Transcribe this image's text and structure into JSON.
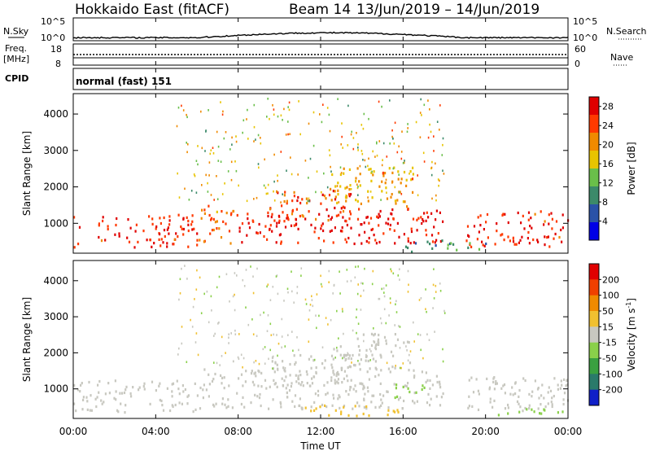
{
  "header": {
    "station": "Hokkaido East (fitACF)",
    "beam": "Beam 14",
    "date_range": "13/Jun/2019 – 14/Jun/2019"
  },
  "top_panels": {
    "nsky": {
      "label": "N.Sky",
      "left_ticks": [
        "10^5",
        "10^0"
      ],
      "right_ticks": [
        "10^5",
        "10^0"
      ],
      "right_label": "N.Search"
    },
    "freq": {
      "label_line1": "Freq.",
      "label_line2": "[MHz]",
      "left_ticks": [
        "18",
        "8"
      ],
      "right_ticks": [
        "60",
        "0"
      ],
      "right_label": "Nave"
    },
    "cpid": {
      "label": "CPID",
      "value": "normal (fast) 151"
    }
  },
  "x_axis": {
    "label": "Time UT",
    "ticks": [
      "00:00",
      "04:00",
      "08:00",
      "12:00",
      "16:00",
      "20:00",
      "00:00"
    ],
    "range_hours": [
      0,
      24
    ]
  },
  "chart_data": [
    {
      "type": "heatmap",
      "title": "",
      "xlabel": "Time UT",
      "ylabel": "Slant Range [km]",
      "xlim": [
        0,
        24
      ],
      "ylim": [
        180,
        4560
      ],
      "yticks": [
        1000,
        2000,
        3000,
        4000
      ],
      "colorbar": {
        "label": "Power [dB]",
        "ticks": [
          4,
          8,
          12,
          16,
          20,
          24,
          28
        ],
        "range": [
          0,
          30
        ],
        "colors": [
          "#0000e6",
          "#2a52a8",
          "#3c8a6a",
          "#6abf4a",
          "#e8c400",
          "#f08a00",
          "#ff3a00",
          "#e00000"
        ]
      },
      "regions": [
        {
          "t0": 0.0,
          "t1": 6.0,
          "r0": 300,
          "r1": 1200,
          "level": 26
        },
        {
          "t0": 6.0,
          "t1": 8.0,
          "r0": 400,
          "r1": 1500,
          "level": 22
        },
        {
          "t0": 8.0,
          "t1": 18.0,
          "r0": 400,
          "r1": 1400,
          "level": 27
        },
        {
          "t0": 9.5,
          "t1": 13.5,
          "r0": 1000,
          "r1": 1900,
          "level": 24
        },
        {
          "t0": 12.5,
          "t1": 16.5,
          "r0": 1400,
          "r1": 2500,
          "level": 19
        },
        {
          "t0": 19.0,
          "t1": 24.0,
          "r0": 300,
          "r1": 1300,
          "level": 26
        },
        {
          "t0": 16.0,
          "t1": 20.0,
          "r0": 180,
          "r1": 500,
          "level": 10
        }
      ]
    },
    {
      "type": "heatmap",
      "title": "",
      "xlabel": "Time UT",
      "ylabel": "Slant Range [km]",
      "xlim": [
        0,
        24
      ],
      "ylim": [
        180,
        4560
      ],
      "yticks": [
        1000,
        2000,
        3000,
        4000
      ],
      "colorbar": {
        "label": "Velocity [m s^-1]",
        "ticks": [
          200,
          100,
          50,
          15,
          -15,
          -50,
          -100,
          -200
        ],
        "range": [
          -250,
          250
        ],
        "colors": [
          "#1020c8",
          "#2a7a6a",
          "#3aa040",
          "#8ad04a",
          "#c8c8c0",
          "#f0c030",
          "#f08a00",
          "#f04000",
          "#e00000"
        ]
      },
      "regions": [
        {
          "t0": 0.0,
          "t1": 6.0,
          "r0": 300,
          "r1": 1200,
          "level": 0
        },
        {
          "t0": 6.0,
          "t1": 18.0,
          "r0": 400,
          "r1": 1500,
          "level": 5
        },
        {
          "t0": 9.5,
          "t1": 13.5,
          "r0": 1000,
          "r1": 1900,
          "level": 0
        },
        {
          "t0": 12.5,
          "t1": 16.5,
          "r0": 1400,
          "r1": 2500,
          "level": 10
        },
        {
          "t0": 15.5,
          "t1": 17.0,
          "r0": 700,
          "r1": 1100,
          "level": -60
        },
        {
          "t0": 11.0,
          "t1": 16.0,
          "r0": 200,
          "r1": 500,
          "level": 60
        },
        {
          "t0": 19.0,
          "t1": 24.0,
          "r0": 300,
          "r1": 1300,
          "level": -10
        },
        {
          "t0": 20.0,
          "t1": 24.0,
          "r0": 200,
          "r1": 400,
          "level": -60
        }
      ]
    }
  ]
}
